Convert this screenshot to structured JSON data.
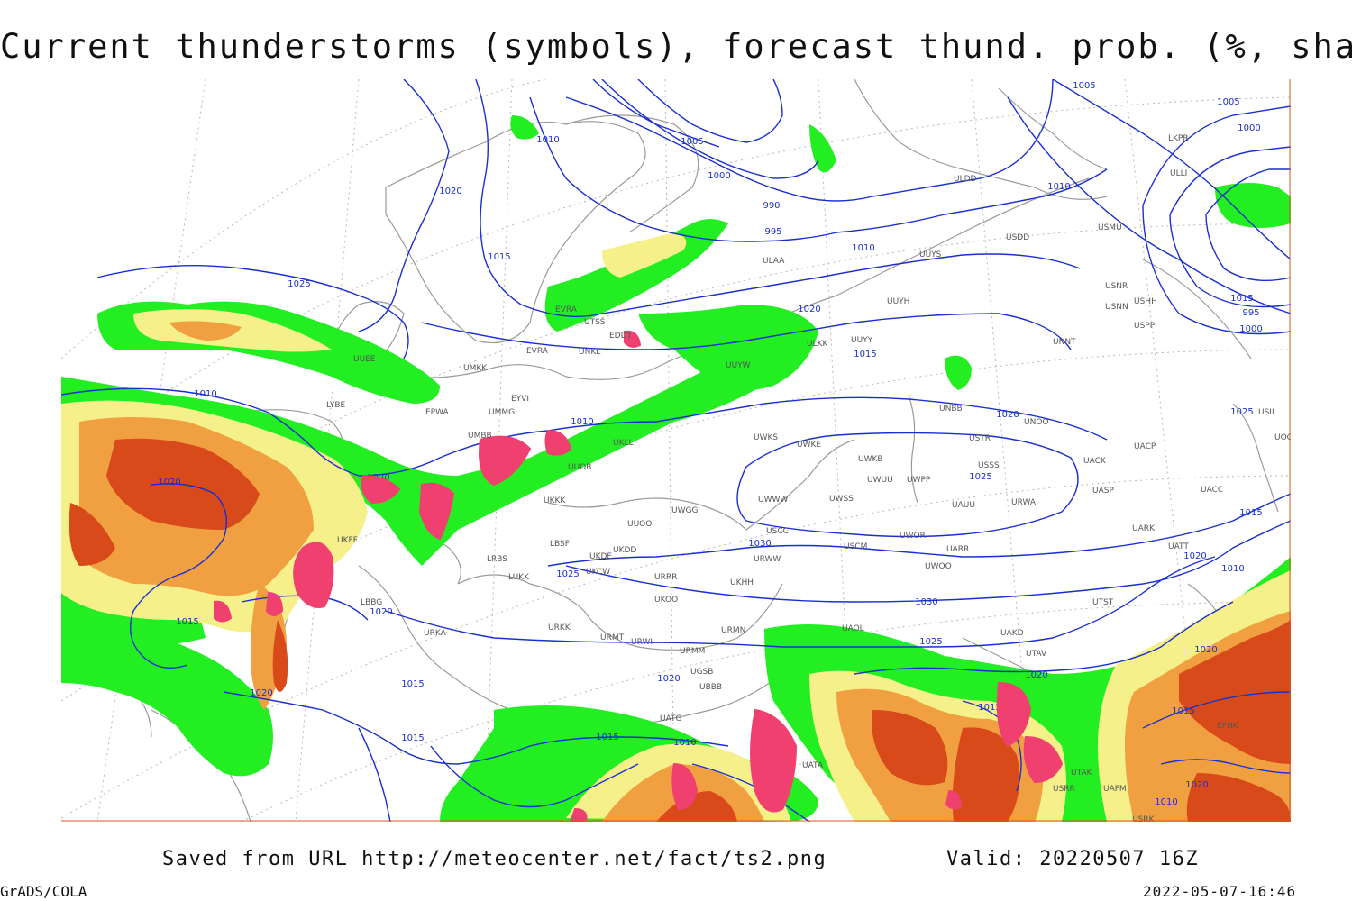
{
  "title": "Current thunderstorms (symbols), forecast thund. prob. (%, shaded)",
  "footer": {
    "saved_label": "Saved from URL http://meteocenter.net/fact/ts2.png",
    "valid_label": "Valid: 20220507 16Z",
    "software": "GrADS/COLA",
    "generated": "2022-05-07-16:46"
  },
  "colors": {
    "isobar": "#1a2fd0",
    "prob_low": "#22ee22",
    "prob_mid": "#f5f08a",
    "prob_high": "#f0a040",
    "prob_top": "#d84a1a",
    "storm_symbol": "#f04070",
    "coast": "#9a9a9a",
    "grid": "#b0b0b0"
  },
  "isobar_labels": [
    "1010",
    "1005",
    "1000",
    "990",
    "995",
    "1010",
    "1020",
    "1015",
    "1025",
    "1020",
    "1015",
    "1020",
    "1025",
    "1030",
    "1030",
    "1025",
    "1020",
    "1015",
    "1010",
    "1020",
    "1020",
    "1015",
    "1015",
    "1015",
    "1010",
    "1010",
    "1020",
    "1015",
    "995",
    "1000",
    "1005",
    "1010",
    "1015",
    "1025",
    "1020",
    "1015",
    "1020",
    "1010",
    "1020",
    "1015",
    "1010",
    "1020",
    "1005",
    "1000",
    "1020",
    "1025"
  ],
  "stations": [
    "ULDD",
    "USDD",
    "USMU",
    "UUYS",
    "ULAA",
    "UUYH",
    "ULKK",
    "UUYY",
    "UUYW",
    "UMKK",
    "EYVI",
    "UMMG",
    "EPWA",
    "UMBB",
    "UKLL",
    "UKKK",
    "UUOB",
    "UUOO",
    "UWGG",
    "UWKS",
    "UWKE",
    "UWKB",
    "UWUU",
    "UWPP",
    "UWWW",
    "UWSS",
    "USCC",
    "USSS",
    "USTR",
    "UNOO",
    "UACP",
    "UACK",
    "UASP",
    "UACC",
    "UARK",
    "UATT",
    "UWOO",
    "UWOR",
    "UARR",
    "USCM",
    "UAUU",
    "URWA",
    "URWW",
    "UKHH",
    "UKDD",
    "UKDE",
    "UKCW",
    "URRR",
    "UKOO",
    "LUKK",
    "LRBS",
    "LBSF",
    "LBBG",
    "UKFF",
    "URKA",
    "URKK",
    "URMT",
    "URWI",
    "URMM",
    "URMN",
    "UGSB",
    "UBBB",
    "UATG",
    "UATA",
    "UAOL",
    "UAKD",
    "UTAV",
    "UTST",
    "USRR",
    "USRK",
    "USNR",
    "USNN",
    "USHH",
    "USPP",
    "UNNT",
    "UNBB",
    "USII",
    "UOOO",
    "ULLI",
    "LKPR",
    "EDDT",
    "LYBE",
    "UUEE",
    "UNKL",
    "UTSS",
    "UTAK",
    "UAFM",
    "EFHK",
    "EVRA"
  ]
}
